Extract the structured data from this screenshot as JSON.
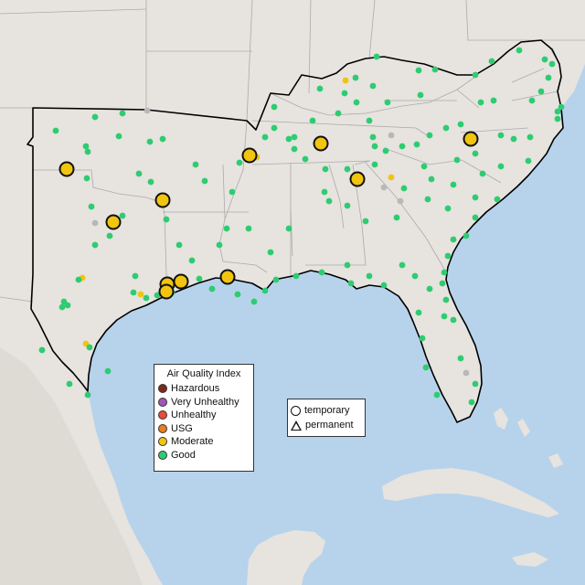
{
  "colors": {
    "ocean": "#b7d3ec",
    "land": "#e7e3df",
    "mountain_land": "#dcd8d2",
    "state_border": "#ababab",
    "region_border": "#000000",
    "good": "#2ecc71",
    "moderate": "#f1c40f",
    "usg": "#e67e22",
    "unhealthy": "#e74c3c",
    "very_unhealthy": "#9b59b6",
    "hazardous": "#7b2a1e",
    "no_data": "#b8b8b8"
  },
  "aqi_legend": {
    "title": "Air Quality Index",
    "items": [
      {
        "label": "Hazardous",
        "color": "#7b2a1e"
      },
      {
        "label": "Very Unhealthy",
        "color": "#9b59b6"
      },
      {
        "label": "Unhealthy",
        "color": "#e74c3c"
      },
      {
        "label": "USG",
        "color": "#e67e22"
      },
      {
        "label": "Moderate",
        "color": "#f1c40f"
      },
      {
        "label": "Good",
        "color": "#2ecc71"
      }
    ]
  },
  "shape_legend": {
    "temporary_label": "temporary",
    "permanent_label": "permanent"
  }
}
